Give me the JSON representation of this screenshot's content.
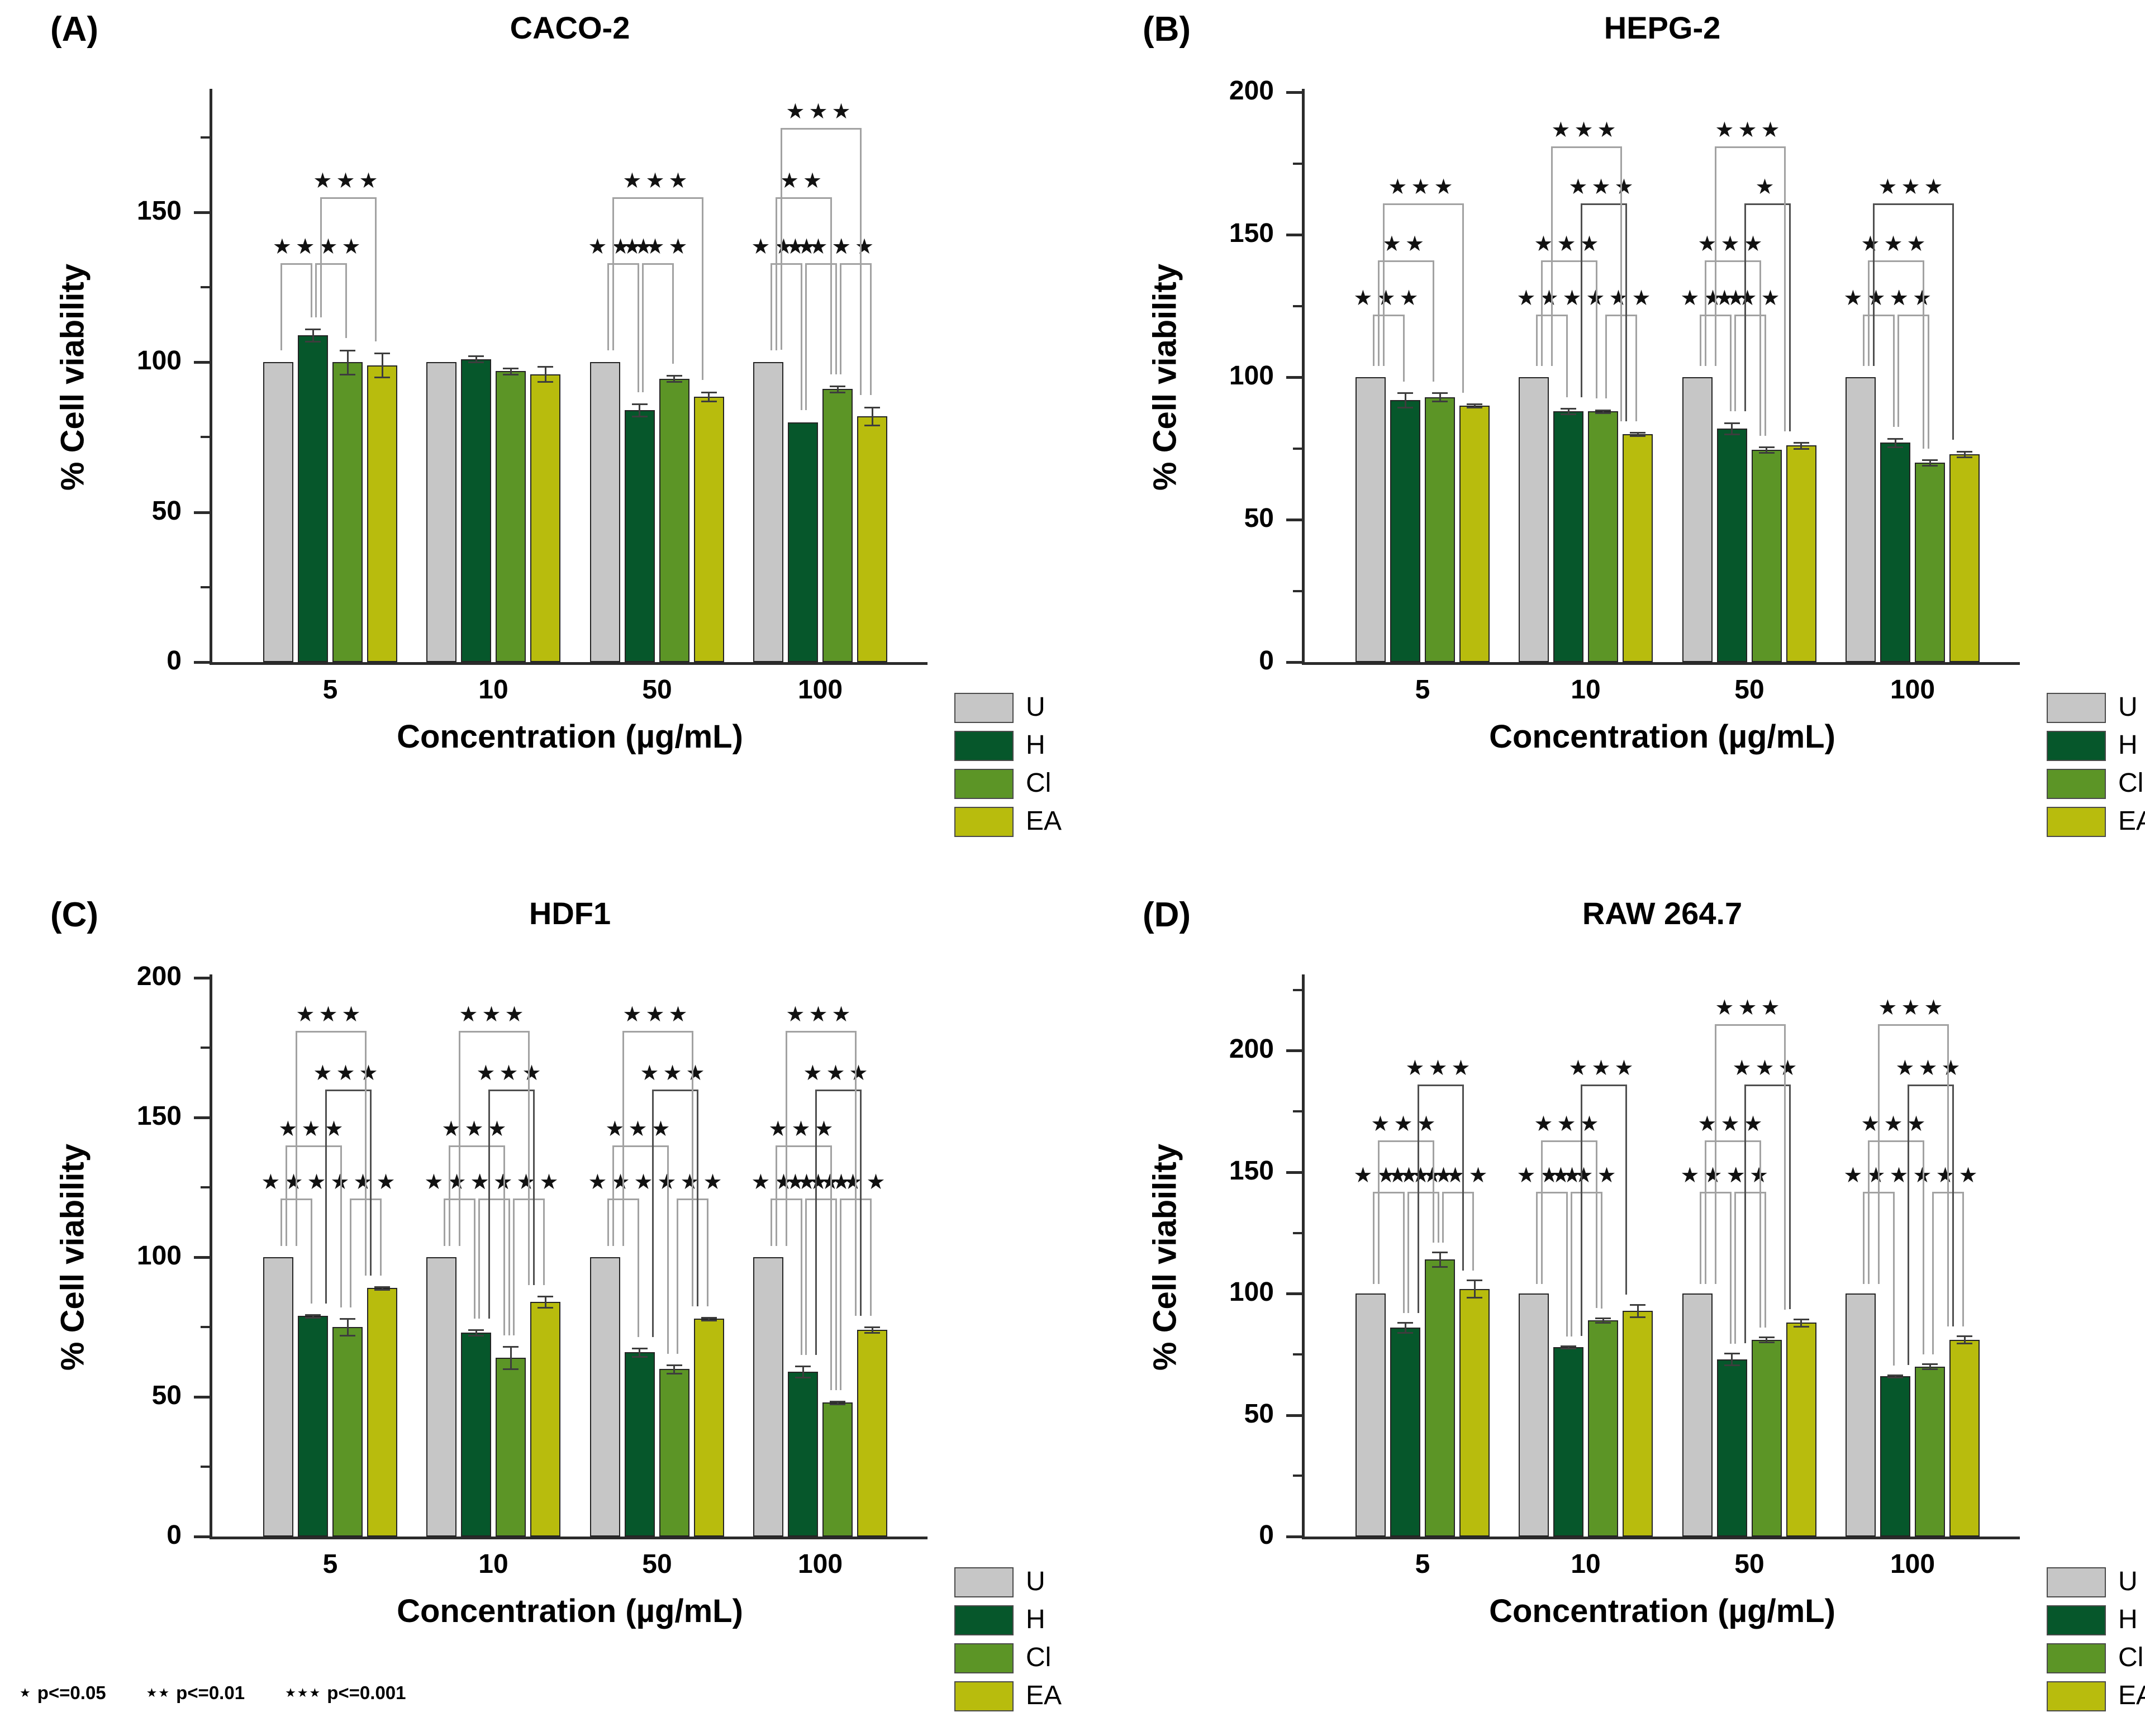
{
  "figure": {
    "background": "#ffffff",
    "footnote": {
      "items": [
        {
          "marker": "*",
          "label": "p<=0.05"
        },
        {
          "marker": "**",
          "label": "p<=0.01"
        },
        {
          "marker": "***",
          "label": "p<=0.001"
        }
      ]
    },
    "legend": {
      "position": "below-right-of-each-panel",
      "items": [
        {
          "key": "U",
          "label": "U"
        },
        {
          "key": "H",
          "label": "H"
        },
        {
          "key": "Cl",
          "label": "Cl"
        },
        {
          "key": "EA",
          "label": "EA"
        }
      ]
    },
    "palette": {
      "U": "#c6c6c6",
      "H": "#06572b",
      "Cl": "#5c9526",
      "EA": "#b8bc0d",
      "bar_border": "#242424",
      "axis": "#2b2b2b",
      "bracket": "#a2a2a2",
      "bracket_strong": "#4f4f4f",
      "error_bar": "#3d3d3d"
    }
  },
  "chart_data": [
    {
      "type": "bar",
      "panel_label": "(A)",
      "title": "CACO-2",
      "xlabel": "Concentration (µg/mL)",
      "ylabel": "% Cell viability",
      "ylim": [
        0,
        190
      ],
      "y_tick_labels": [
        0,
        50,
        100,
        150
      ],
      "minor_tick_step": 25,
      "grid": false,
      "categories": [
        "5",
        "10",
        "50",
        "100"
      ],
      "series": [
        {
          "name": "U",
          "values": [
            100,
            100,
            100,
            100
          ],
          "errors": [
            0,
            0,
            0,
            0
          ]
        },
        {
          "name": "H",
          "values": [
            109,
            101,
            84,
            80
          ],
          "errors": [
            2,
            1,
            2,
            0
          ]
        },
        {
          "name": "Cl",
          "values": [
            100,
            97,
            94.5,
            91
          ],
          "errors": [
            4,
            1,
            1,
            1
          ]
        },
        {
          "name": "EA",
          "values": [
            99,
            96,
            88.5,
            82
          ],
          "errors": [
            4,
            2.5,
            1.5,
            3
          ]
        }
      ],
      "significance": [
        {
          "group": 0,
          "a": "U",
          "b": "H",
          "stars": "**",
          "y": 133
        },
        {
          "group": 0,
          "a": "H",
          "b": "Cl",
          "stars": "***",
          "y": 133
        },
        {
          "group": 0,
          "a": "H",
          "b": "EA",
          "stars": "***",
          "y": 155
        },
        {
          "group": 2,
          "a": "U",
          "b": "H",
          "stars": "***",
          "y": 133
        },
        {
          "group": 2,
          "a": "H",
          "b": "Cl",
          "stars": "***",
          "y": 133
        },
        {
          "group": 2,
          "a": "U",
          "b": "EA",
          "stars": "***",
          "y": 155
        },
        {
          "group": 3,
          "a": "U",
          "b": "H",
          "stars": "***",
          "y": 133
        },
        {
          "group": 3,
          "a": "H",
          "b": "Cl",
          "stars": "***",
          "y": 133
        },
        {
          "group": 3,
          "a": "Cl",
          "b": "EA",
          "stars": "**",
          "y": 133
        },
        {
          "group": 3,
          "a": "U",
          "b": "Cl",
          "stars": "**",
          "y": 155
        },
        {
          "group": 3,
          "a": "U",
          "b": "EA",
          "stars": "***",
          "y": 178
        }
      ]
    },
    {
      "type": "bar",
      "panel_label": "(B)",
      "title": "HEPG-2",
      "xlabel": "Concentration (µg/mL)",
      "ylabel": "% Cell viability",
      "ylim": [
        0,
        200
      ],
      "y_tick_labels": [
        0,
        50,
        100,
        150,
        200
      ],
      "minor_tick_step": 25,
      "grid": false,
      "categories": [
        "5",
        "10",
        "50",
        "100"
      ],
      "series": [
        {
          "name": "U",
          "values": [
            100,
            100,
            100,
            100
          ],
          "errors": [
            0,
            0,
            0,
            0
          ]
        },
        {
          "name": "H",
          "values": [
            92,
            88,
            82,
            77
          ],
          "errors": [
            2.5,
            1,
            2,
            1.5
          ]
        },
        {
          "name": "Cl",
          "values": [
            93,
            88,
            74.5,
            70
          ],
          "errors": [
            1.5,
            0.5,
            1,
            1
          ]
        },
        {
          "name": "EA",
          "values": [
            90,
            80,
            76,
            73
          ],
          "errors": [
            0.5,
            0.5,
            1,
            1
          ]
        }
      ],
      "significance": [
        {
          "group": 0,
          "a": "U",
          "b": "H",
          "stars": "***",
          "y": 122
        },
        {
          "group": 0,
          "a": "U",
          "b": "Cl",
          "stars": "**",
          "y": 141
        },
        {
          "group": 0,
          "a": "U",
          "b": "EA",
          "stars": "***",
          "y": 161
        },
        {
          "group": 1,
          "a": "U",
          "b": "H",
          "stars": "***",
          "y": 122
        },
        {
          "group": 1,
          "a": "Cl",
          "b": "EA",
          "stars": "***",
          "y": 122
        },
        {
          "group": 1,
          "a": "U",
          "b": "Cl",
          "stars": "***",
          "y": 141
        },
        {
          "group": 1,
          "a": "H",
          "b": "EA",
          "stars": "***",
          "y": 161,
          "strong": true
        },
        {
          "group": 1,
          "a": "U",
          "b": "EA",
          "stars": "***",
          "y": 181
        },
        {
          "group": 2,
          "a": "U",
          "b": "H",
          "stars": "***",
          "y": 122
        },
        {
          "group": 2,
          "a": "H",
          "b": "Cl",
          "stars": "***",
          "y": 122
        },
        {
          "group": 2,
          "a": "U",
          "b": "Cl",
          "stars": "***",
          "y": 141
        },
        {
          "group": 2,
          "a": "H",
          "b": "EA",
          "stars": "*",
          "y": 161,
          "strong": true
        },
        {
          "group": 2,
          "a": "U",
          "b": "EA",
          "stars": "***",
          "y": 181
        },
        {
          "group": 3,
          "a": "U",
          "b": "H",
          "stars": "***",
          "y": 122
        },
        {
          "group": 3,
          "a": "H",
          "b": "Cl",
          "stars": "**",
          "y": 122
        },
        {
          "group": 3,
          "a": "U",
          "b": "Cl",
          "stars": "***",
          "y": 141
        },
        {
          "group": 3,
          "a": "U",
          "b": "EA",
          "stars": "***",
          "y": 161,
          "strong": true
        }
      ]
    },
    {
      "type": "bar",
      "panel_label": "(C)",
      "title": "HDF1",
      "xlabel": "Concentration (µg/mL)",
      "ylabel": "% Cell viability",
      "ylim": [
        0,
        200
      ],
      "y_tick_labels": [
        0,
        50,
        100,
        150,
        200
      ],
      "minor_tick_step": 25,
      "grid": false,
      "categories": [
        "5",
        "10",
        "50",
        "100"
      ],
      "series": [
        {
          "name": "U",
          "values": [
            100,
            100,
            100,
            100
          ],
          "errors": [
            0,
            0,
            0,
            0
          ]
        },
        {
          "name": "H",
          "values": [
            79,
            73,
            66,
            59
          ],
          "errors": [
            0.5,
            1,
            1.5,
            2
          ]
        },
        {
          "name": "Cl",
          "values": [
            75,
            64,
            60,
            48
          ],
          "errors": [
            3,
            4,
            1.5,
            0.5
          ]
        },
        {
          "name": "EA",
          "values": [
            89,
            84,
            78,
            74
          ],
          "errors": [
            0.5,
            2,
            0.5,
            1
          ]
        }
      ],
      "significance": [
        {
          "group": 0,
          "a": "U",
          "b": "H",
          "stars": "***",
          "y": 121
        },
        {
          "group": 0,
          "a": "Cl",
          "b": "EA",
          "stars": "***",
          "y": 121
        },
        {
          "group": 0,
          "a": "U",
          "b": "Cl",
          "stars": "***",
          "y": 140
        },
        {
          "group": 0,
          "a": "H",
          "b": "EA",
          "stars": "***",
          "y": 160,
          "strong": true
        },
        {
          "group": 0,
          "a": "U",
          "b": "EA",
          "stars": "***",
          "y": 181
        },
        {
          "group": 1,
          "a": "U",
          "b": "H",
          "stars": "***",
          "y": 121
        },
        {
          "group": 1,
          "a": "H",
          "b": "Cl",
          "stars": "**",
          "y": 121
        },
        {
          "group": 1,
          "a": "Cl",
          "b": "EA",
          "stars": "***",
          "y": 121
        },
        {
          "group": 1,
          "a": "U",
          "b": "Cl",
          "stars": "***",
          "y": 140
        },
        {
          "group": 1,
          "a": "H",
          "b": "EA",
          "stars": "***",
          "y": 160,
          "strong": true
        },
        {
          "group": 1,
          "a": "U",
          "b": "EA",
          "stars": "***",
          "y": 181
        },
        {
          "group": 2,
          "a": "U",
          "b": "H",
          "stars": "***",
          "y": 121
        },
        {
          "group": 2,
          "a": "Cl",
          "b": "EA",
          "stars": "***",
          "y": 121
        },
        {
          "group": 2,
          "a": "U",
          "b": "Cl",
          "stars": "***",
          "y": 140
        },
        {
          "group": 2,
          "a": "H",
          "b": "EA",
          "stars": "***",
          "y": 160,
          "strong": true
        },
        {
          "group": 2,
          "a": "U",
          "b": "EA",
          "stars": "***",
          "y": 181
        },
        {
          "group": 3,
          "a": "U",
          "b": "H",
          "stars": "***",
          "y": 121
        },
        {
          "group": 3,
          "a": "H",
          "b": "Cl",
          "stars": "***",
          "y": 121
        },
        {
          "group": 3,
          "a": "Cl",
          "b": "EA",
          "stars": "***",
          "y": 121
        },
        {
          "group": 3,
          "a": "U",
          "b": "Cl",
          "stars": "***",
          "y": 140
        },
        {
          "group": 3,
          "a": "H",
          "b": "EA",
          "stars": "***",
          "y": 160,
          "strong": true
        },
        {
          "group": 3,
          "a": "U",
          "b": "EA",
          "stars": "***",
          "y": 181
        }
      ]
    },
    {
      "type": "bar",
      "panel_label": "(D)",
      "title": "RAW 264.7",
      "xlabel": "Concentration (µg/mL)",
      "ylabel": "% Cell viability",
      "ylim": [
        0,
        230
      ],
      "y_tick_labels": [
        0,
        50,
        100,
        150,
        200
      ],
      "minor_tick_step": 25,
      "grid": false,
      "categories": [
        "5",
        "10",
        "50",
        "100"
      ],
      "series": [
        {
          "name": "U",
          "values": [
            100,
            100,
            100,
            100
          ],
          "errors": [
            0,
            0,
            0,
            0
          ]
        },
        {
          "name": "H",
          "values": [
            86,
            78,
            73,
            66
          ],
          "errors": [
            2,
            0.5,
            2.5,
            0.5
          ]
        },
        {
          "name": "Cl",
          "values": [
            114,
            89,
            81,
            70
          ],
          "errors": [
            3,
            1,
            1,
            1
          ]
        },
        {
          "name": "EA",
          "values": [
            102,
            93,
            88,
            81
          ],
          "errors": [
            3.5,
            2.5,
            1.5,
            1.5
          ]
        }
      ],
      "significance": [
        {
          "group": 0,
          "a": "U",
          "b": "H",
          "stars": "***",
          "y": 142
        },
        {
          "group": 0,
          "a": "H",
          "b": "Cl",
          "stars": "***",
          "y": 142
        },
        {
          "group": 0,
          "a": "Cl",
          "b": "EA",
          "stars": "***",
          "y": 142
        },
        {
          "group": 0,
          "a": "U",
          "b": "Cl",
          "stars": "***",
          "y": 163
        },
        {
          "group": 0,
          "a": "H",
          "b": "EA",
          "stars": "***",
          "y": 186,
          "strong": true
        },
        {
          "group": 1,
          "a": "U",
          "b": "H",
          "stars": "***",
          "y": 142
        },
        {
          "group": 1,
          "a": "H",
          "b": "Cl",
          "stars": "***",
          "y": 142
        },
        {
          "group": 1,
          "a": "U",
          "b": "Cl",
          "stars": "***",
          "y": 163
        },
        {
          "group": 1,
          "a": "H",
          "b": "EA",
          "stars": "***",
          "y": 186,
          "strong": true
        },
        {
          "group": 2,
          "a": "U",
          "b": "H",
          "stars": "***",
          "y": 142
        },
        {
          "group": 2,
          "a": "H",
          "b": "Cl",
          "stars": "**",
          "y": 142
        },
        {
          "group": 2,
          "a": "U",
          "b": "Cl",
          "stars": "***",
          "y": 163
        },
        {
          "group": 2,
          "a": "H",
          "b": "EA",
          "stars": "***",
          "y": 186,
          "strong": true
        },
        {
          "group": 2,
          "a": "U",
          "b": "EA",
          "stars": "***",
          "y": 211
        },
        {
          "group": 3,
          "a": "U",
          "b": "H",
          "stars": "***",
          "y": 142
        },
        {
          "group": 3,
          "a": "Cl",
          "b": "EA",
          "stars": "***",
          "y": 142
        },
        {
          "group": 3,
          "a": "U",
          "b": "Cl",
          "stars": "***",
          "y": 163
        },
        {
          "group": 3,
          "a": "H",
          "b": "EA",
          "stars": "***",
          "y": 186,
          "strong": true
        },
        {
          "group": 3,
          "a": "U",
          "b": "EA",
          "stars": "***",
          "y": 211
        }
      ]
    }
  ]
}
